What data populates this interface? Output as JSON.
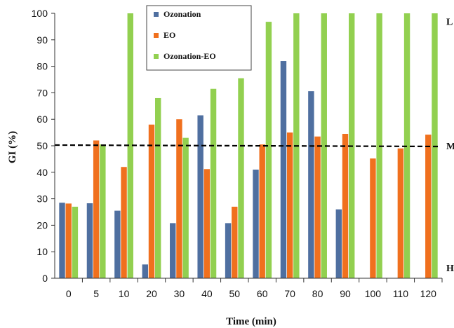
{
  "chart_data": {
    "type": "bar",
    "xlabel": "Time (min)",
    "ylabel": "GI (%)",
    "ylim": [
      0,
      100
    ],
    "yticks": [
      0,
      10,
      20,
      30,
      40,
      50,
      60,
      70,
      80,
      90,
      100
    ],
    "categories": [
      "0",
      "5",
      "10",
      "20",
      "30",
      "40",
      "50",
      "60",
      "70",
      "80",
      "90",
      "100",
      "110",
      "120"
    ],
    "series": [
      {
        "name": "Ozonation",
        "color": "#4f6fa0",
        "values": [
          28.5,
          28.3,
          25.5,
          5.2,
          20.8,
          61.5,
          20.8,
          41.0,
          82.0,
          70.6,
          26.0,
          null,
          null,
          null
        ]
      },
      {
        "name": "EO",
        "color": "#f0701e",
        "values": [
          28.2,
          52.0,
          42.0,
          58.0,
          60.0,
          41.2,
          27.0,
          50.5,
          55.0,
          53.5,
          54.5,
          45.2,
          49.0,
          54.2
        ]
      },
      {
        "name": "Ozonation-EO",
        "color": "#92d050",
        "values": [
          27.0,
          50.5,
          100,
          68.0,
          53.0,
          71.5,
          75.5,
          96.8,
          100,
          100,
          100,
          100,
          100,
          100
        ]
      }
    ],
    "reference_line": {
      "value": 50,
      "style": "dashed",
      "color": "#000000"
    },
    "zone_labels": [
      {
        "text": "L",
        "value": 97
      },
      {
        "text": "M",
        "value": 50
      },
      {
        "text": "H",
        "value": 4
      }
    ],
    "legend_position": "top-center"
  }
}
